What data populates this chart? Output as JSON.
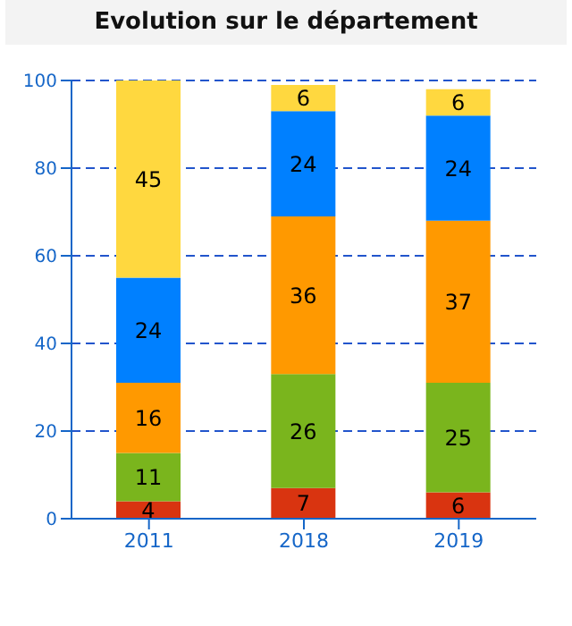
{
  "chart_data": {
    "type": "bar",
    "title": "Evolution sur le département",
    "categories": [
      "2011",
      "2018",
      "2019"
    ],
    "stacked": true,
    "series": [
      {
        "color": "#d93410",
        "values": [
          4,
          7,
          6
        ]
      },
      {
        "color": "#7ab51d",
        "values": [
          11,
          26,
          25
        ]
      },
      {
        "color": "#ff9900",
        "values": [
          16,
          36,
          37
        ]
      },
      {
        "color": "#0080ff",
        "values": [
          24,
          24,
          24
        ]
      },
      {
        "color": "#ffd83f",
        "values": [
          45,
          6,
          6
        ]
      }
    ],
    "ylim": [
      0,
      100
    ],
    "yticks": [
      0,
      20,
      40,
      60,
      80,
      100
    ],
    "grid": "y",
    "data_labels": true,
    "legend": false
  }
}
